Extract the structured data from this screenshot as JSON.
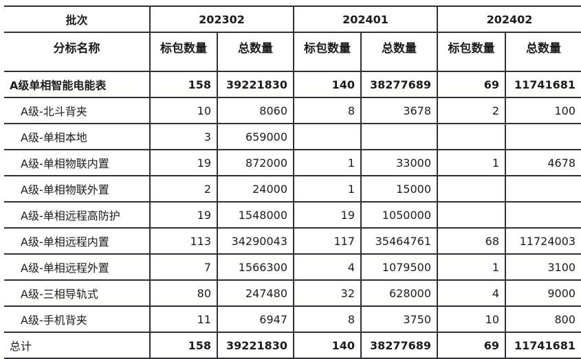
{
  "header": {
    "batch_label": "批次",
    "batches": [
      "202302",
      "202401",
      "202402"
    ],
    "name_label": "分标名称",
    "sub_labels": [
      "标包数量",
      "总数量"
    ]
  },
  "rows": [
    {
      "name": "A级单相智能电能表",
      "bold": true,
      "values": [
        "158",
        "39221830",
        "140",
        "38277689",
        "69",
        "11741681"
      ]
    },
    {
      "name": "A级-北斗背夹",
      "values": [
        "10",
        "8060",
        "8",
        "3678",
        "2",
        "100"
      ]
    },
    {
      "name": "A级-单相本地",
      "values": [
        "3",
        "659000",
        "",
        "",
        "",
        ""
      ]
    },
    {
      "name": "A级-单相物联内置",
      "values": [
        "19",
        "872000",
        "1",
        "33000",
        "1",
        "4678"
      ]
    },
    {
      "name": "A级-单相物联外置",
      "values": [
        "2",
        "24000",
        "1",
        "15000",
        "",
        ""
      ]
    },
    {
      "name": "A级-单相远程高防护",
      "values": [
        "19",
        "1548000",
        "19",
        "1050000",
        "",
        ""
      ]
    },
    {
      "name": "A级-单相远程内置",
      "values": [
        "113",
        "34290043",
        "117",
        "35464761",
        "68",
        "11724003"
      ]
    },
    {
      "name": "A级-单相远程外置",
      "values": [
        "7",
        "1566300",
        "4",
        "1079500",
        "1",
        "3100"
      ]
    },
    {
      "name": "A级-三相导轨式",
      "values": [
        "80",
        "247480",
        "32",
        "628000",
        "4",
        "9000"
      ]
    },
    {
      "name": "A级-手机背夹",
      "values": [
        "11",
        "6947",
        "8",
        "3750",
        "10",
        "800"
      ]
    }
  ],
  "total": {
    "name": "总计",
    "values": [
      "158",
      "39221830",
      "140",
      "38277689",
      "69",
      "11741681"
    ]
  }
}
